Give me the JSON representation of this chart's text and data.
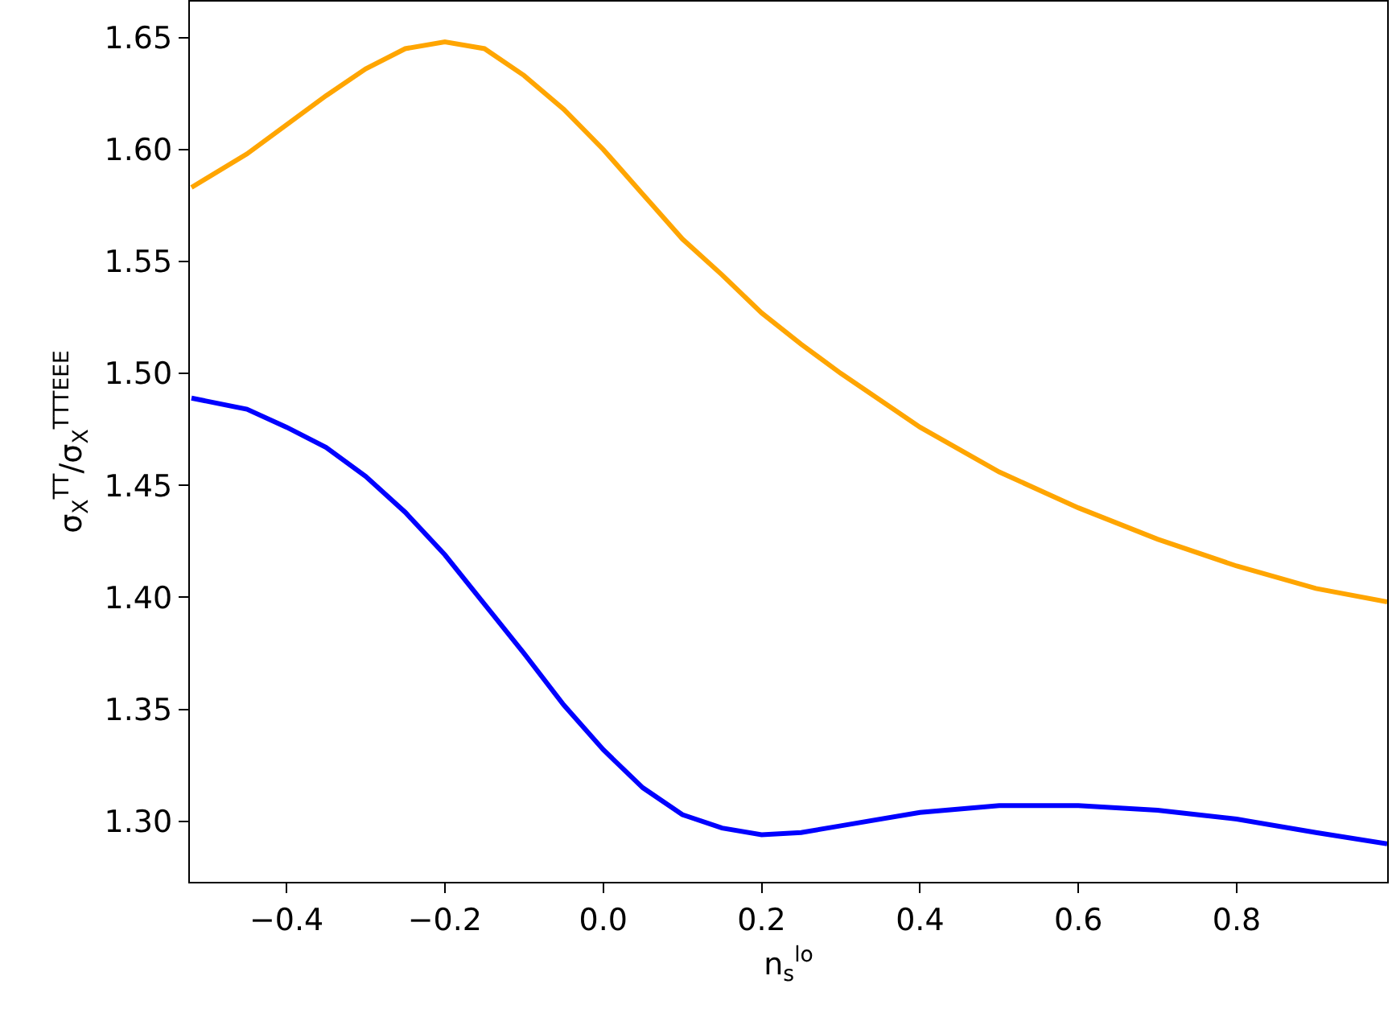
{
  "chart_data": {
    "type": "line",
    "xlabel": "n$_{s}$$^{lo}$",
    "ylabel": "σ$_{X}$$^{TT}$/σ$_{X}$$^{TTTEEE}$",
    "x": [
      -0.52,
      -0.45,
      -0.4,
      -0.35,
      -0.3,
      -0.25,
      -0.2,
      -0.15,
      -0.1,
      -0.05,
      0.0,
      0.05,
      0.1,
      0.15,
      0.2,
      0.25,
      0.3,
      0.4,
      0.5,
      0.6,
      0.7,
      0.8,
      0.9,
      0.99
    ],
    "series": [
      {
        "color": "#ffa500",
        "values": [
          1.583,
          1.598,
          1.611,
          1.624,
          1.636,
          1.645,
          1.648,
          1.645,
          1.633,
          1.618,
          1.6,
          1.58,
          1.56,
          1.544,
          1.527,
          1.513,
          1.5,
          1.476,
          1.456,
          1.44,
          1.426,
          1.414,
          1.404,
          1.398
        ]
      },
      {
        "color": "#0000ff",
        "values": [
          1.489,
          1.484,
          1.476,
          1.467,
          1.454,
          1.438,
          1.419,
          1.397,
          1.375,
          1.352,
          1.332,
          1.315,
          1.303,
          1.297,
          1.294,
          1.295,
          1.298,
          1.304,
          1.307,
          1.307,
          1.305,
          1.301,
          1.295,
          1.29
        ]
      }
    ],
    "xlim": [
      -0.522,
      0.99
    ],
    "ylim": [
      1.273,
      1.666
    ],
    "xticks": [
      {
        "value": -0.4,
        "label": "−0.4"
      },
      {
        "value": -0.2,
        "label": "−0.2"
      },
      {
        "value": 0.0,
        "label": "0.0"
      },
      {
        "value": 0.2,
        "label": "0.2"
      },
      {
        "value": 0.4,
        "label": "0.4"
      },
      {
        "value": 0.6,
        "label": "0.6"
      },
      {
        "value": 0.8,
        "label": "0.8"
      }
    ],
    "yticks": [
      {
        "value": 1.3,
        "label": "1.30"
      },
      {
        "value": 1.35,
        "label": "1.35"
      },
      {
        "value": 1.4,
        "label": "1.40"
      },
      {
        "value": 1.45,
        "label": "1.45"
      },
      {
        "value": 1.5,
        "label": "1.50"
      },
      {
        "value": 1.55,
        "label": "1.55"
      },
      {
        "value": 1.6,
        "label": "1.60"
      },
      {
        "value": 1.65,
        "label": "1.65"
      }
    ],
    "grid": false,
    "line_style": "solid",
    "marker": "none"
  }
}
